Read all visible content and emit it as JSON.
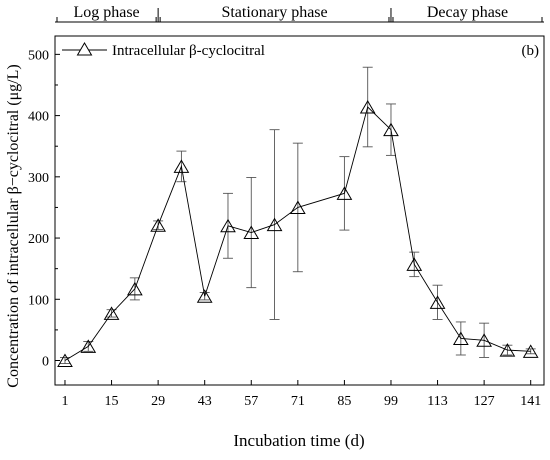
{
  "chart_data": {
    "type": "line",
    "panel_label": "(b)",
    "xlabel": "Incubation time (d)",
    "ylabel": "Concentration of intracellular β−cyclocitral (μg/L)",
    "xlim": [
      -2,
      145
    ],
    "ylim": [
      -40,
      530
    ],
    "xticks": [
      1,
      15,
      29,
      43,
      57,
      71,
      85,
      99,
      113,
      127,
      141
    ],
    "yticks": [
      0,
      100,
      200,
      300,
      400,
      500
    ],
    "legend": "top-left",
    "phases": [
      {
        "label": "Log phase",
        "start": -2,
        "end": 29
      },
      {
        "label": "Stationary phase",
        "start": 29,
        "end": 99
      },
      {
        "label": "Decay phase",
        "start": 99,
        "end": 145
      }
    ],
    "series": [
      {
        "name": "Intracellular β-cyclocitral",
        "marker": "open-triangle",
        "color": "#000000",
        "points": [
          {
            "x": 1,
            "y": 0,
            "err": 5
          },
          {
            "x": 8,
            "y": 23,
            "err": 8
          },
          {
            "x": 15,
            "y": 77,
            "err": 6
          },
          {
            "x": 22,
            "y": 117,
            "err": 18
          },
          {
            "x": 29,
            "y": 221,
            "err": 7
          },
          {
            "x": 36,
            "y": 317,
            "err": 25
          },
          {
            "x": 43,
            "y": 105,
            "err": 6
          },
          {
            "x": 50,
            "y": 220,
            "err": 53
          },
          {
            "x": 57,
            "y": 209,
            "err": 90
          },
          {
            "x": 64,
            "y": 222,
            "err": 155
          },
          {
            "x": 71,
            "y": 250,
            "err": 105
          },
          {
            "x": 85,
            "y": 273,
            "err": 60
          },
          {
            "x": 92,
            "y": 414,
            "err": 65
          },
          {
            "x": 99,
            "y": 377,
            "err": 42
          },
          {
            "x": 106,
            "y": 157,
            "err": 20
          },
          {
            "x": 113,
            "y": 95,
            "err": 28
          },
          {
            "x": 120,
            "y": 36,
            "err": 27
          },
          {
            "x": 127,
            "y": 33,
            "err": 28
          },
          {
            "x": 134,
            "y": 17,
            "err": 8
          },
          {
            "x": 141,
            "y": 15,
            "err": 4
          }
        ]
      }
    ]
  }
}
